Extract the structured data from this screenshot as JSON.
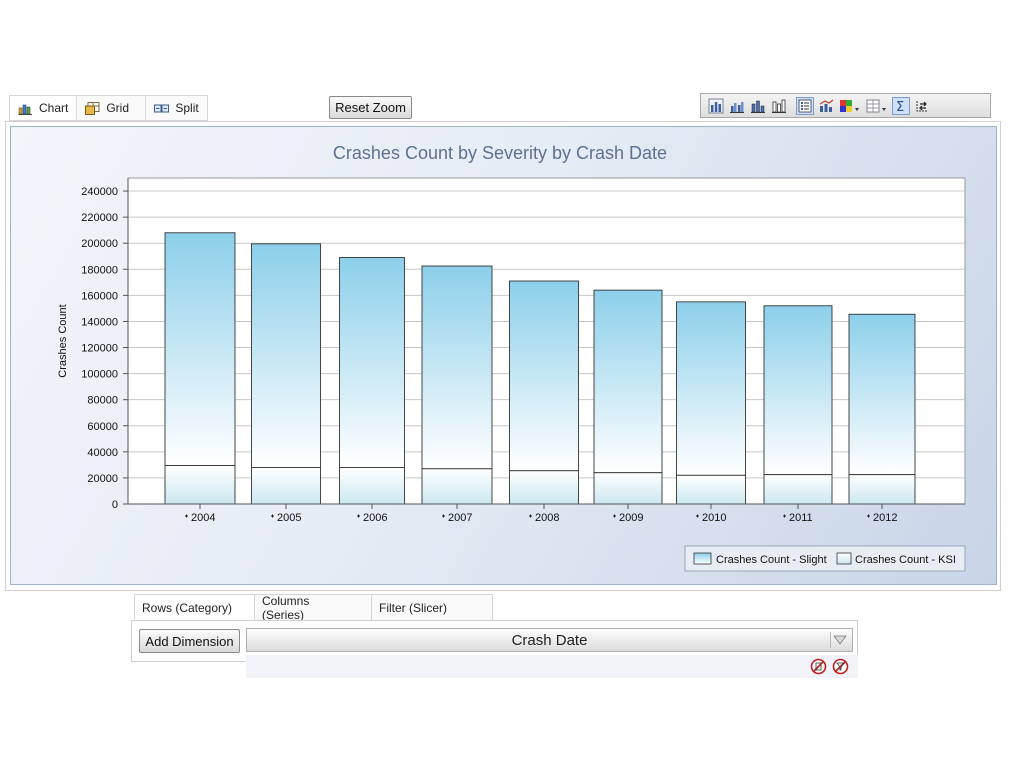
{
  "view_tabs": [
    {
      "label": "Chart",
      "icon": "bar-chart-icon"
    },
    {
      "label": "Grid",
      "icon": "grid-icon"
    },
    {
      "label": "Split",
      "icon": "split-icon"
    }
  ],
  "reset_zoom_label": "Reset Zoom",
  "toolbar_buttons": [
    {
      "name": "stacked-bar-chart-icon",
      "pressed": false
    },
    {
      "name": "clustered-bar-chart-icon",
      "pressed": false
    },
    {
      "name": "bar-chart-3d-icon",
      "pressed": false
    },
    {
      "name": "bar-chart-alt-icon",
      "pressed": false
    },
    {
      "name": "legend-toggle-icon",
      "pressed": true
    },
    {
      "name": "combo-chart-icon",
      "pressed": false
    },
    {
      "name": "color-palette-icon",
      "pressed": false
    },
    {
      "name": "gridlines-icon",
      "pressed": false
    },
    {
      "name": "sum-icon",
      "pressed": true
    },
    {
      "name": "swap-axes-icon",
      "pressed": false
    }
  ],
  "colors": {
    "slight_top": "#8ccfea",
    "slight_bottom": "#ffffff",
    "ksi_top": "#ffffff",
    "ksi_bottom": "#cbe8f0",
    "title": "#5d7290",
    "bar_stroke": "#333333"
  },
  "chart_data": {
    "type": "bar",
    "stacked": true,
    "title": "Crashes Count by Severity by Crash Date",
    "xlabel": "",
    "ylabel": "Crashes Count",
    "categories": [
      "2004",
      "2005",
      "2006",
      "2007",
      "2008",
      "2009",
      "2010",
      "2011",
      "2012"
    ],
    "series": [
      {
        "name": "Crashes Count - KSI",
        "values": [
          29500,
          28000,
          28000,
          27000,
          25500,
          24000,
          22000,
          22500,
          22500
        ]
      },
      {
        "name": "Crashes Count - Slight",
        "values": [
          178500,
          171500,
          161000,
          155500,
          145500,
          140000,
          133000,
          129500,
          123000
        ]
      }
    ],
    "legend_order": [
      "Crashes Count - Slight",
      "Crashes Count - KSI"
    ],
    "ylim": [
      0,
      250000
    ],
    "yticks": [
      0,
      20000,
      40000,
      60000,
      80000,
      100000,
      120000,
      140000,
      160000,
      180000,
      200000,
      220000,
      240000
    ],
    "grid": true,
    "legend_position": "bottom-right"
  },
  "dimension_panel": {
    "tabs": [
      "Rows (Category)",
      "Columns (Series)",
      "Filter (Slicer)"
    ],
    "add_button": "Add Dimension",
    "selected": "Crash Date"
  }
}
